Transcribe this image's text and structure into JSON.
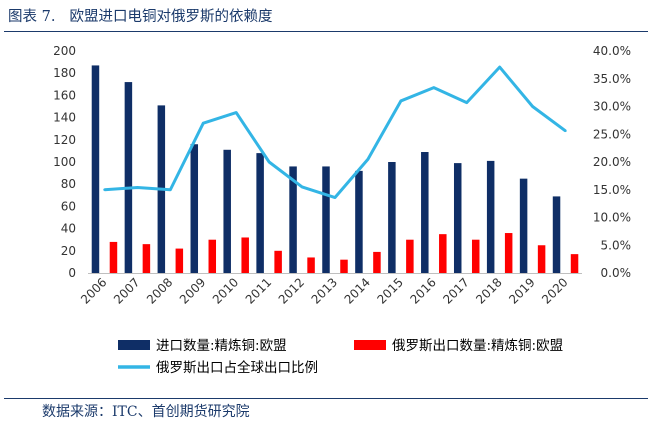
{
  "figure": {
    "number": "图表 7.",
    "title": "欧盟进口电铜对俄罗斯的依赖度",
    "source": "数据来源：ITC、首创期货研究院"
  },
  "chart_data": {
    "type": "bar+line",
    "categories": [
      "2006",
      "2007",
      "2008",
      "2009",
      "2010",
      "2011",
      "2012",
      "2013",
      "2014",
      "2015",
      "2016",
      "2017",
      "2018",
      "2019",
      "2020"
    ],
    "series": [
      {
        "name": "进口数量:精炼铜:欧盟",
        "kind": "bar",
        "axis": "left",
        "color": "#0f2e66",
        "values": [
          187,
          172,
          151,
          116,
          111,
          108,
          96,
          96,
          92,
          100,
          109,
          99,
          101,
          85,
          69
        ]
      },
      {
        "name": "俄罗斯出口数量:精炼铜:欧盟",
        "kind": "bar",
        "axis": "left",
        "color": "#ff0000",
        "values": [
          28,
          26,
          22,
          30,
          32,
          20,
          14,
          12,
          19,
          30,
          35,
          30,
          36,
          25,
          17
        ]
      },
      {
        "name": "俄罗斯出口占全球出口比例",
        "kind": "line",
        "axis": "right",
        "color": "#33b5e5",
        "values": [
          0.15,
          0.154,
          0.15,
          0.27,
          0.289,
          0.2,
          0.155,
          0.136,
          0.205,
          0.31,
          0.334,
          0.307,
          0.371,
          0.3,
          0.256
        ]
      }
    ],
    "y_left": {
      "min": 0,
      "max": 200,
      "step": 20,
      "ticks": [
        "0",
        "20",
        "40",
        "60",
        "80",
        "100",
        "120",
        "140",
        "160",
        "180",
        "200"
      ]
    },
    "y_right": {
      "min": 0,
      "max": 0.4,
      "step": 0.05,
      "ticks": [
        "0.0%",
        "5.0%",
        "10.0%",
        "15.0%",
        "20.0%",
        "25.0%",
        "30.0%",
        "35.0%",
        "40.0%"
      ]
    },
    "grid": false,
    "legend_position": "bottom"
  }
}
